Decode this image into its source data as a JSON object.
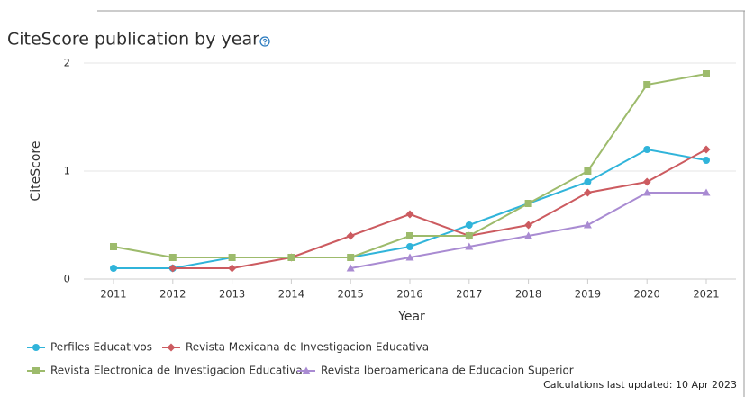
{
  "chart_data": {
    "type": "line",
    "title": "CiteScore publication by year",
    "x_label": "Year",
    "y_label": "CiteScore",
    "footnote": "Calculations last updated: 10 Apr 2023",
    "x": [
      2011,
      2012,
      2013,
      2014,
      2015,
      2016,
      2017,
      2018,
      2019,
      2020,
      2021
    ],
    "xlim": [
      2011,
      2021
    ],
    "xticks": [
      2011,
      2012,
      2013,
      2014,
      2015,
      2016,
      2017,
      2018,
      2019,
      2020,
      2021
    ],
    "ylim": [
      0,
      2
    ],
    "yticks": [
      0,
      1,
      2
    ],
    "grid": true,
    "series": [
      {
        "name": "Perfiles Educativos",
        "color": "#30b4da",
        "marker": "circle",
        "values": [
          0.1,
          0.1,
          0.2,
          0.2,
          0.2,
          0.3,
          0.5,
          0.7,
          0.9,
          1.2,
          1.1
        ]
      },
      {
        "name": "Revista Mexicana de Investigacion Educativa",
        "color": "#cc5b60",
        "marker": "diamond",
        "values": [
          null,
          0.1,
          0.1,
          0.2,
          0.4,
          0.6,
          0.4,
          0.5,
          0.8,
          0.9,
          1.2
        ]
      },
      {
        "name": "Revista Electronica de Investigacion Educativa",
        "color": "#9dbb6c",
        "marker": "square",
        "values": [
          0.3,
          0.2,
          0.2,
          0.2,
          0.2,
          0.4,
          0.4,
          0.7,
          1.0,
          1.8,
          1.9
        ]
      },
      {
        "name": "Revista Iberoamericana de Educacion Superior",
        "color": "#a98bd2",
        "marker": "triangle",
        "values": [
          null,
          null,
          null,
          null,
          0.1,
          0.2,
          0.3,
          0.4,
          0.5,
          0.8,
          0.8
        ]
      }
    ]
  }
}
